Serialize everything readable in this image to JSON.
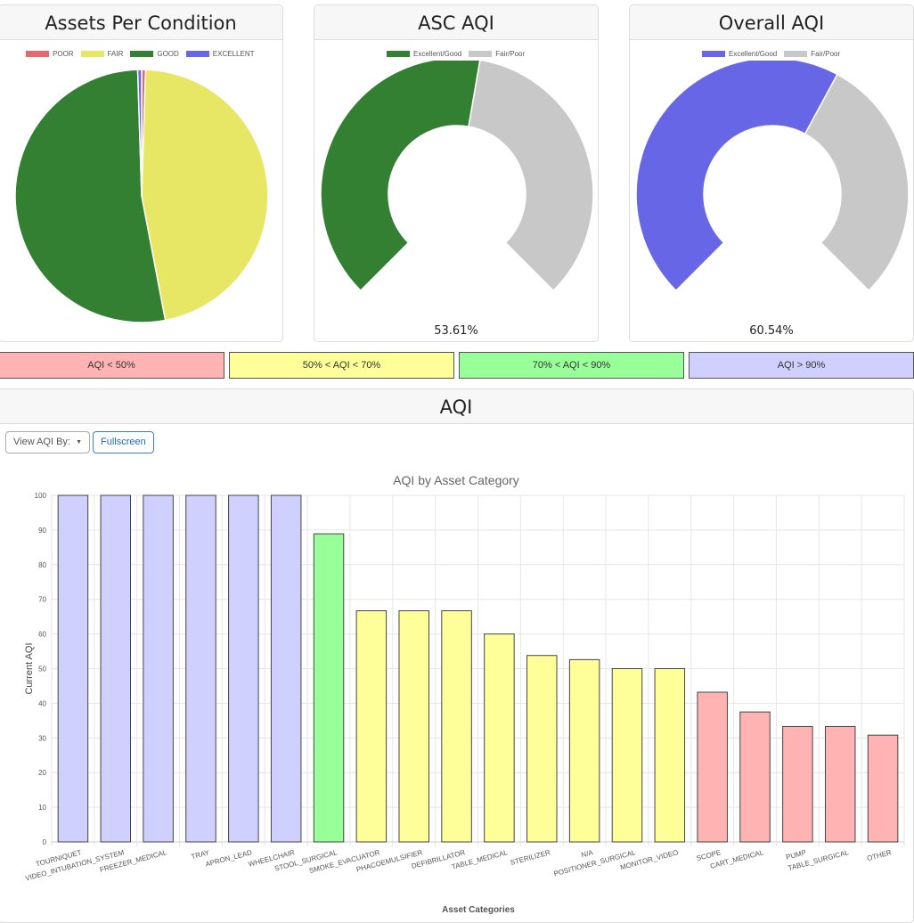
{
  "pie_card": {
    "title": "Assets Per Condition",
    "legend": [
      {
        "label": "POOR",
        "color": "#e8686b"
      },
      {
        "label": "FAIR",
        "color": "#e7e765"
      },
      {
        "label": "GOOD",
        "color": "#338033"
      },
      {
        "label": "EXCELLENT",
        "color": "#6666e6"
      }
    ]
  },
  "asc_card": {
    "title": "ASC AQI",
    "legend": [
      {
        "label": "Excellent/Good",
        "color": "#338033"
      },
      {
        "label": "Fair/Poor",
        "color": "#c8c8c8"
      }
    ],
    "value_text": "53.61%"
  },
  "overall_card": {
    "title": "Overall AQI",
    "legend": [
      {
        "label": "Excellent/Good",
        "color": "#6666e6"
      },
      {
        "label": "Fair/Poor",
        "color": "#c8c8c8"
      }
    ],
    "value_text": "60.54%"
  },
  "bands": [
    {
      "label": "AQI < 50%",
      "color": "#ffb3b3"
    },
    {
      "label": "50% < AQI < 70%",
      "color": "#ffff99"
    },
    {
      "label": "70% < AQI < 90%",
      "color": "#99ff99"
    },
    {
      "label": "AQI > 90%",
      "color": "#d0d0ff"
    }
  ],
  "aqi_card": {
    "title": "AQI",
    "view_by_label": "View AQI By:",
    "fullscreen_label": "Fullscreen"
  },
  "chart_data": [
    {
      "type": "pie",
      "title": "Assets Per Condition",
      "categories": [
        "POOR",
        "FAIR",
        "GOOD",
        "EXCELLENT"
      ],
      "values": [
        0.5,
        46.5,
        52.5,
        0.5
      ],
      "colors": [
        "#e8686b",
        "#e7e765",
        "#338033",
        "#6666e6"
      ],
      "legend": "top"
    },
    {
      "type": "pie",
      "title": "ASC AQI",
      "categories": [
        "Excellent/Good",
        "Fair/Poor"
      ],
      "values": [
        53.61,
        46.39
      ],
      "colors": [
        "#338033",
        "#c8c8c8"
      ],
      "legend": "top"
    },
    {
      "type": "pie",
      "title": "Overall AQI",
      "categories": [
        "Excellent/Good",
        "Fair/Poor"
      ],
      "values": [
        60.54,
        39.46
      ],
      "colors": [
        "#6666e6",
        "#c8c8c8"
      ],
      "legend": "top"
    },
    {
      "type": "bar",
      "title": "AQI by Asset Category",
      "xlabel": "Asset Categories",
      "ylabel": "Current AQI",
      "ylim": [
        0,
        100
      ],
      "yticks": [
        0,
        10,
        20,
        30,
        40,
        50,
        60,
        70,
        80,
        90,
        100
      ],
      "grid": true,
      "categories": [
        "TOURNIQUET",
        "VIDEO_INTUBATION_SYSTEM",
        "FREEZER_MEDICAL",
        "TRAY",
        "APRON_LEAD",
        "WHEELCHAIR",
        "STOOL_SURGICAL",
        "SMOKE_EVACUATOR",
        "PHACOEMULSIFIER",
        "DEFIBRILLATOR",
        "TABLE_MEDICAL",
        "STERILIZER",
        "N/A",
        "POSITIONER_SURGICAL",
        "MONITOR_VIDEO",
        "SCOPE",
        "CART_MEDICAL",
        "PUMP",
        "TABLE_SURGICAL",
        "OTHER"
      ],
      "values": [
        100,
        100,
        100,
        100,
        100,
        100,
        88.9,
        66.7,
        66.7,
        66.7,
        60,
        53.8,
        52.6,
        50,
        50,
        43.2,
        37.5,
        33.3,
        33.3,
        30.8
      ],
      "colors": [
        "#d0d0ff",
        "#d0d0ff",
        "#d0d0ff",
        "#d0d0ff",
        "#d0d0ff",
        "#d0d0ff",
        "#99ff99",
        "#ffff99",
        "#ffff99",
        "#ffff99",
        "#ffff99",
        "#ffff99",
        "#ffff99",
        "#ffff99",
        "#ffff99",
        "#ffb3b3",
        "#ffb3b3",
        "#ffb3b3",
        "#ffb3b3",
        "#ffb3b3"
      ]
    }
  ]
}
